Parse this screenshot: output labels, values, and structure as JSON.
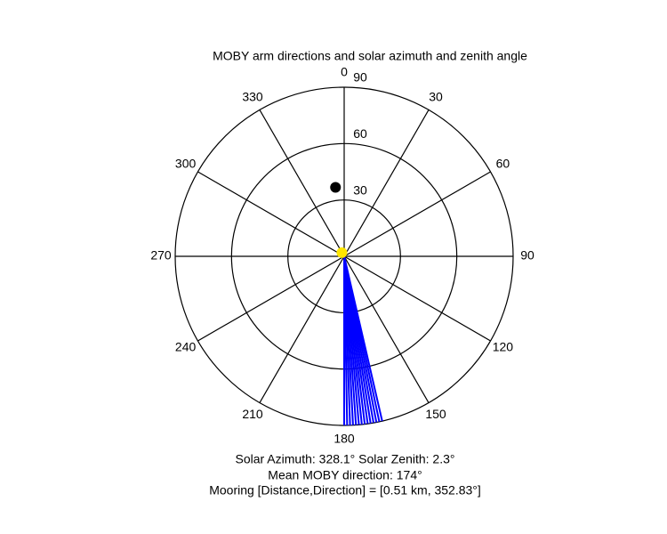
{
  "chart_data": {
    "type": "polar",
    "title": "MOBY arm directions and solar azimuth and zenith angle",
    "rlim": [
      0,
      90
    ],
    "rticks": [
      30,
      60,
      90
    ],
    "thetaticks": [
      0,
      30,
      60,
      90,
      120,
      150,
      180,
      210,
      240,
      270,
      300,
      330
    ],
    "arms": {
      "color": "#0000ff",
      "directions": [
        167,
        168,
        169,
        170,
        171,
        172,
        173,
        174,
        175,
        176,
        177,
        178,
        179,
        180
      ]
    },
    "points": [
      {
        "theta": 352.83,
        "r": 37,
        "color": "#000000"
      },
      {
        "theta": 328.1,
        "r": 2.3,
        "color": "#ffe600"
      }
    ],
    "annotations": [
      "Solar Azimuth: 328.1°   Solar Zenith: 2.3°",
      "Mean MOBY direction: 174°",
      "Mooring [Distance,Direction] = [0.51 km, 352.83°]"
    ]
  }
}
